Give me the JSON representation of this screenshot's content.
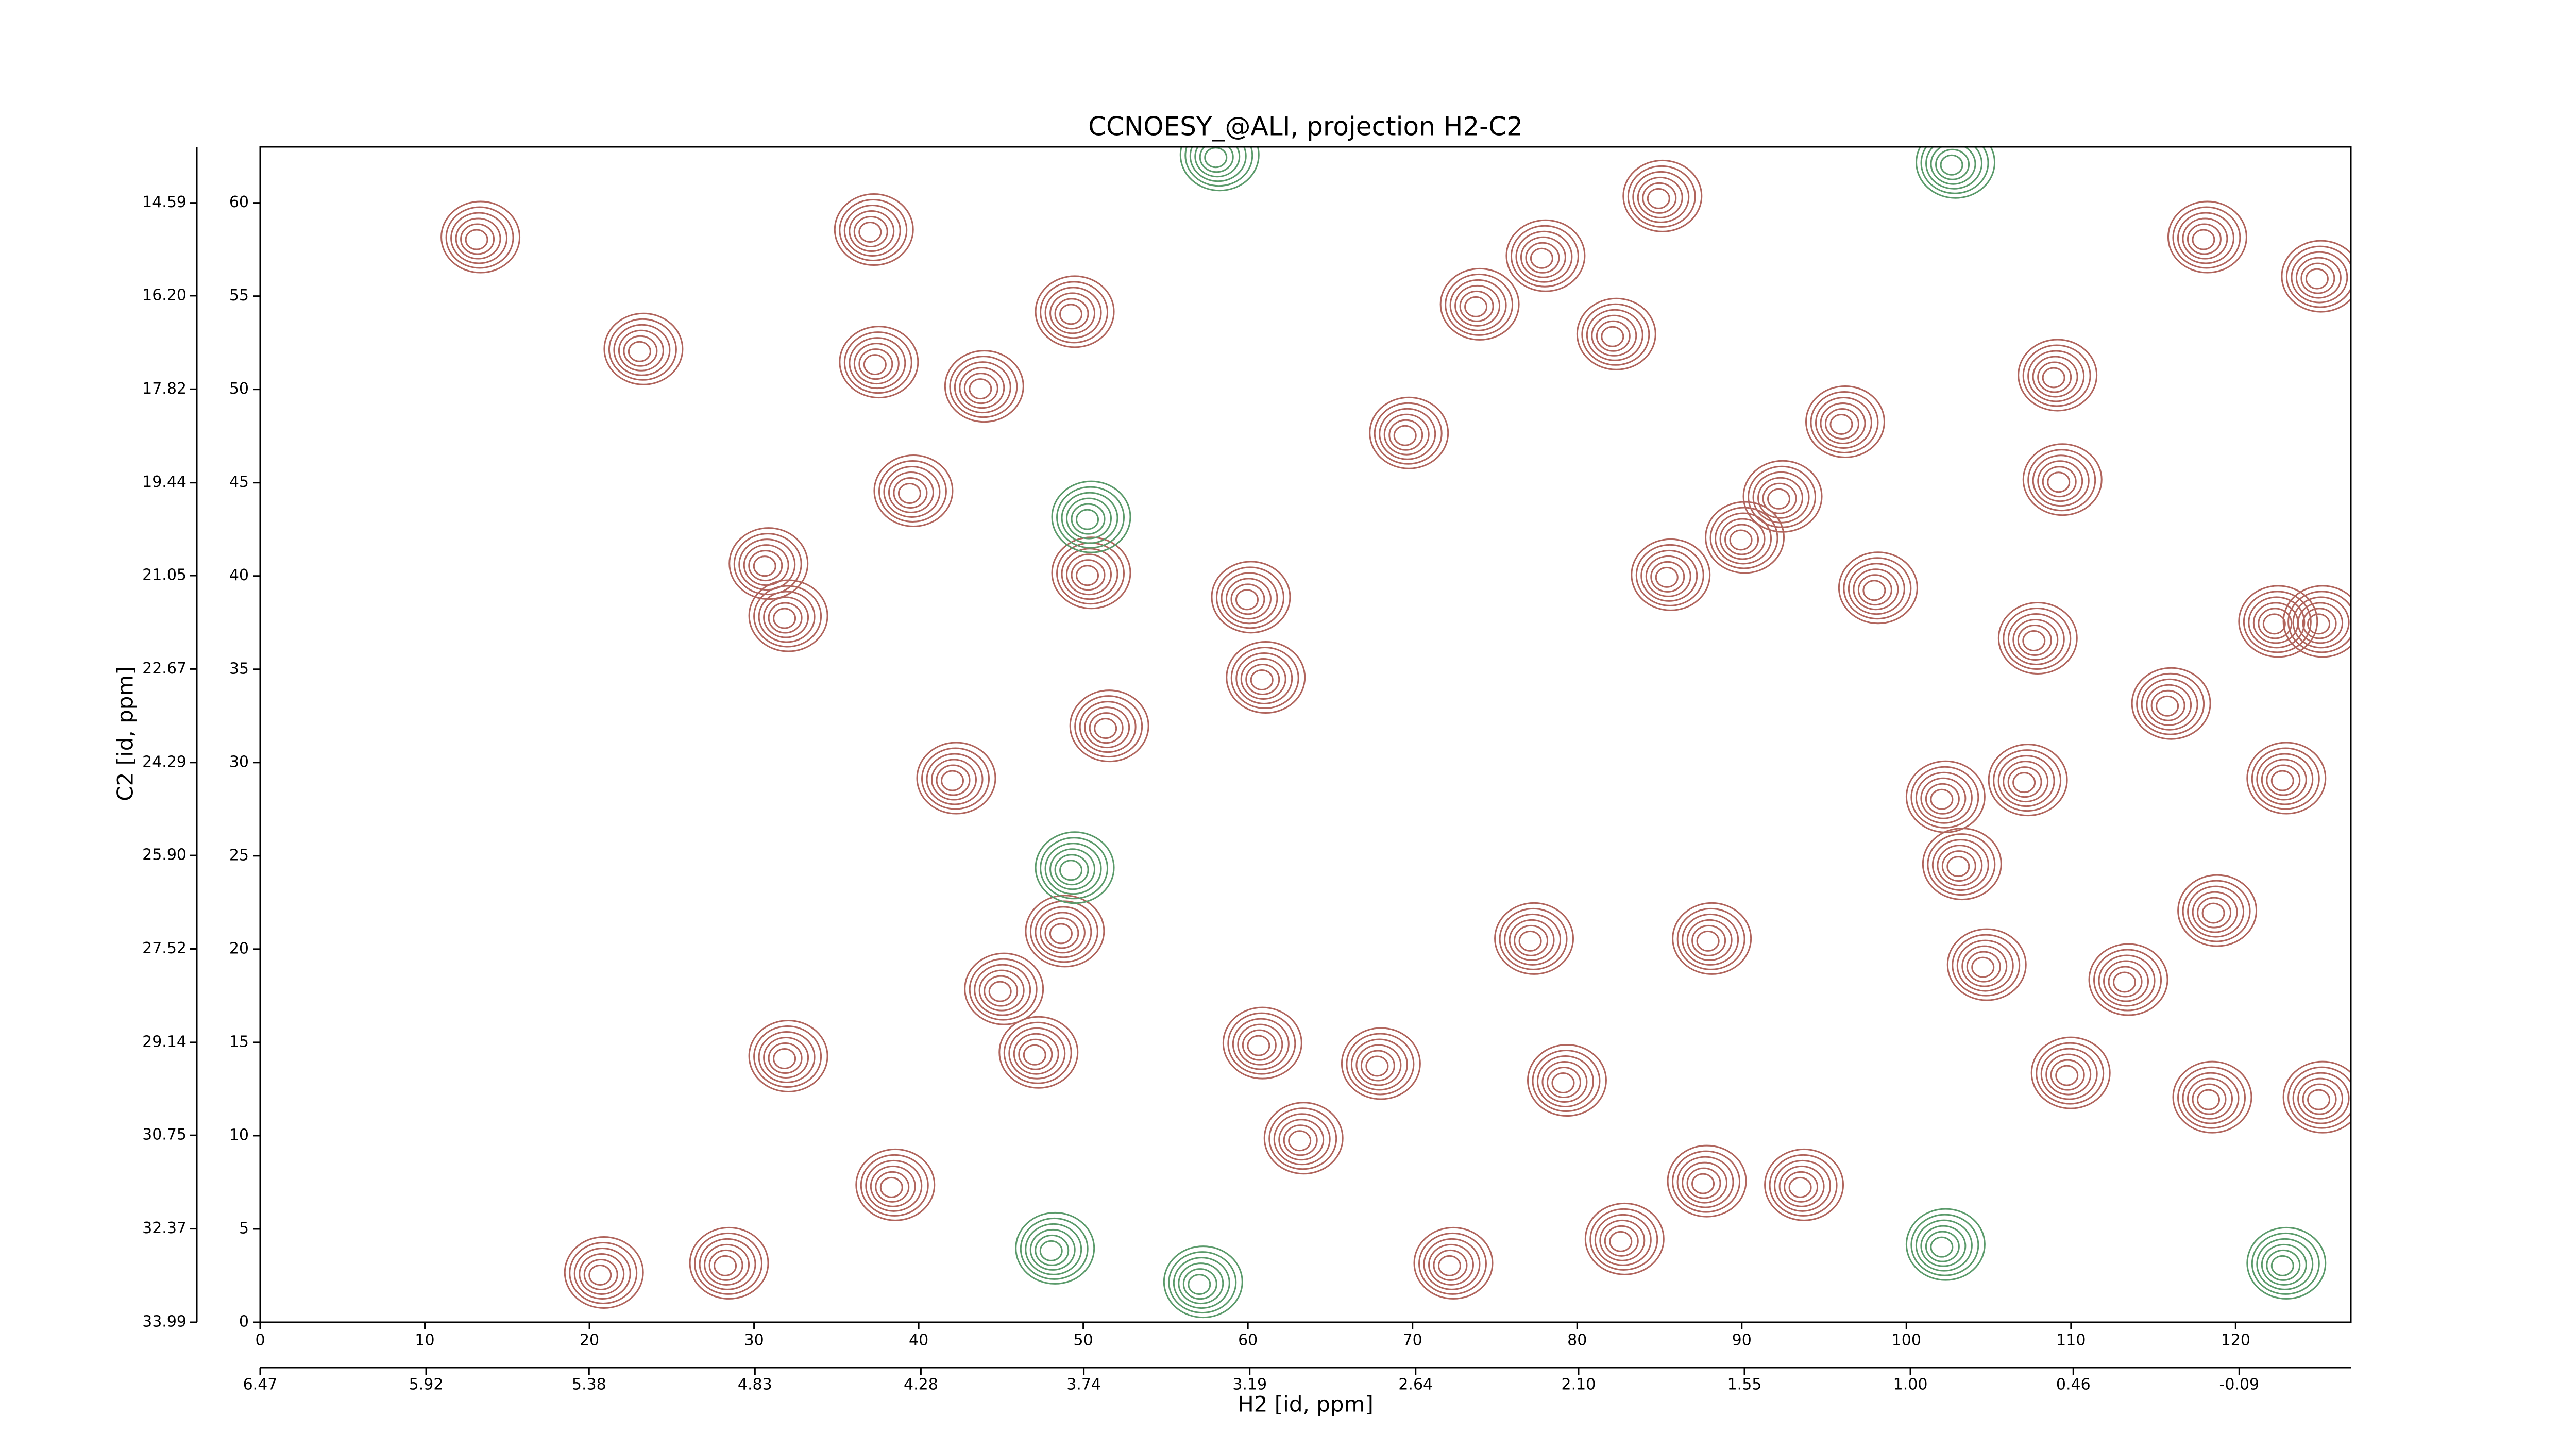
{
  "chart_data": {
    "type": "contour",
    "title": "CCNOESY_@ALI, projection H2-C2",
    "x_label": "H2 [id, ppm]",
    "y_label": "C2 [id, ppm]",
    "xlim": [
      0,
      127
    ],
    "xticks": [
      0,
      10,
      20,
      30,
      40,
      50,
      60,
      70,
      80,
      90,
      100,
      110,
      120
    ],
    "ylim": [
      0,
      63
    ],
    "yticks": [
      0,
      5,
      10,
      15,
      20,
      25,
      30,
      35,
      40,
      45,
      50,
      55,
      60
    ],
    "x2lim": [
      6.47,
      -0.46
    ],
    "x2ticks": [
      6.47,
      5.92,
      5.38,
      4.83,
      4.28,
      3.74,
      3.19,
      2.64,
      {
        "value": 2.1,
        "label": "2.10"
      },
      1.55,
      {
        "value": 1,
        "label": "1.00"
      },
      0.46,
      -0.09
    ],
    "y2lim": [
      33.99,
      13.62
    ],
    "y2ticks": [
      33.99,
      32.37,
      30.75,
      29.14,
      27.52,
      {
        "value": 25.9,
        "label": "25.90"
      },
      24.29,
      22.67,
      21.05,
      19.44,
      17.82,
      {
        "value": 16.2,
        "label": "16.20"
      },
      14.59
    ],
    "positive_peaks": {
      "color": "#b0645c",
      "x": [
        13.1,
        23,
        37,
        37.3,
        43.7,
        49.2,
        39.4,
        50.2,
        51.3,
        42,
        48.6,
        44.9,
        47,
        59.9,
        60.8,
        60.6,
        67.8,
        69.5,
        77.8,
        82.1,
        73.8,
        85.4,
        89.9,
        92.2,
        96,
        98,
        107.7,
        102.1,
        107.1,
        108.9,
        109.2,
        122.3,
        125,
        124.9,
        87.9,
        79.1,
        77.1,
        118.3,
        125,
        113.2,
        104.6,
        87.6,
        93.5,
        38.3,
        63.1,
        30.6,
        31.8,
        84.9,
        118,
        20.6,
        28.2,
        72.2,
        82.6,
        31.8,
        115.8,
        122.8,
        118.6,
        109.7,
        103.1
      ],
      "y": [
        58,
        52,
        58.4,
        51.3,
        50,
        54,
        44.4,
        40,
        31.8,
        29,
        20.8,
        17.7,
        14.3,
        38.7,
        34.4,
        14.8,
        13.7,
        47.5,
        57,
        52.8,
        54.4,
        39.9,
        41.9,
        44.1,
        48.1,
        39.2,
        36.5,
        28,
        28.9,
        50.6,
        45,
        37.4,
        37.4,
        55.9,
        20.4,
        12.8,
        20.4,
        11.9,
        11.9,
        18.2,
        19,
        7.4,
        7.2,
        7.2,
        9.7,
        40.5,
        37.7,
        60.2,
        58,
        2.5,
        3,
        3,
        4.3,
        14.1,
        33,
        29,
        21.9,
        13.2,
        24.4
      ]
    },
    "negative_peaks": {
      "color": "#5a9a6a",
      "x": [
        50.2,
        49.2,
        102.1,
        122.8,
        58,
        102.7,
        48,
        57
      ],
      "y": [
        43,
        24.2,
        4,
        3,
        62.4,
        62,
        3.8,
        2
      ]
    }
  }
}
